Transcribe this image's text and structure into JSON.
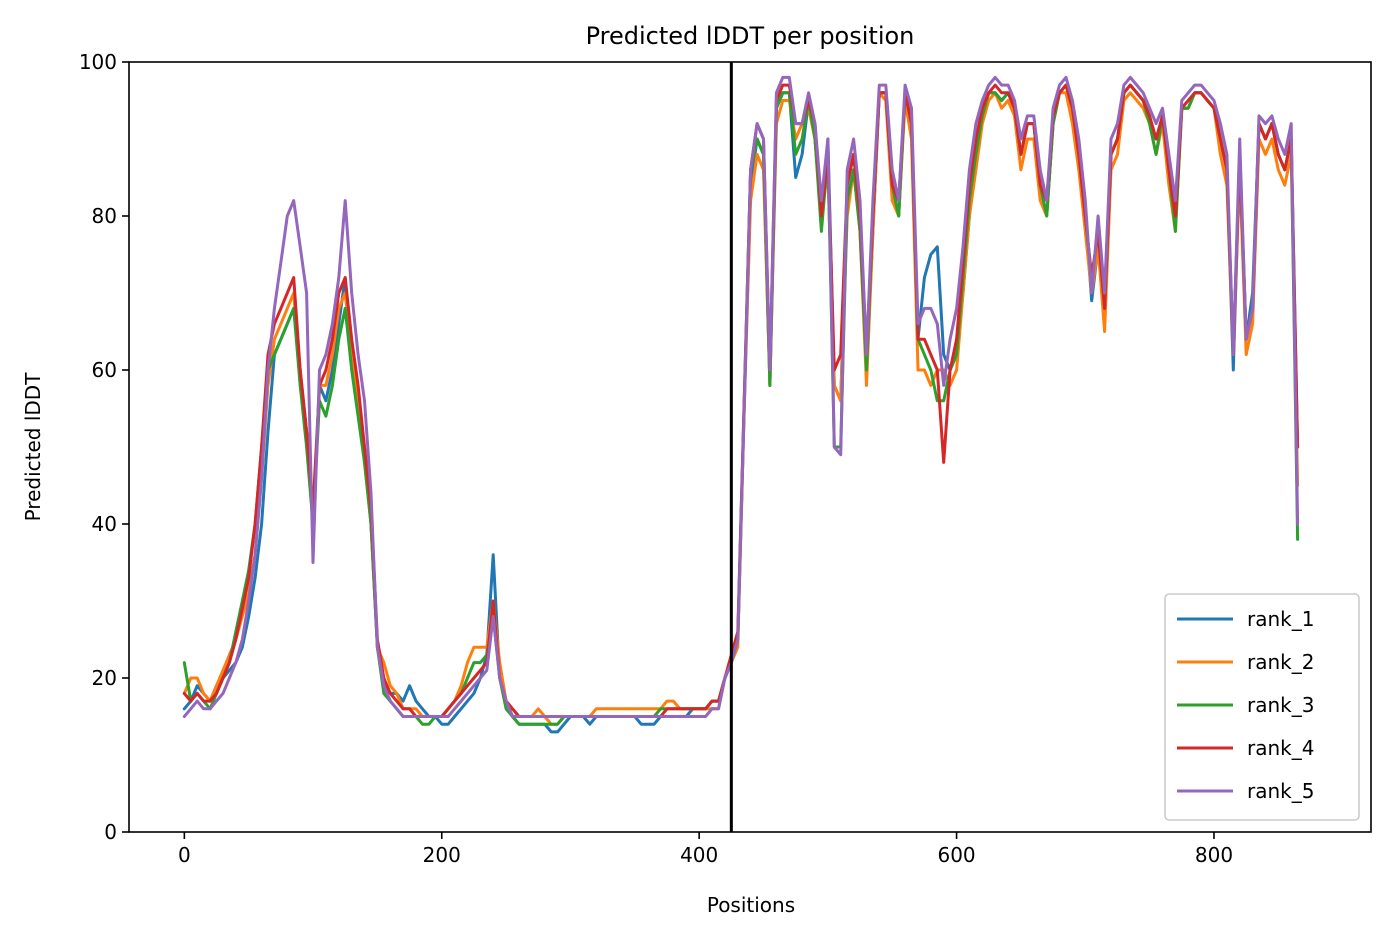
{
  "chart_data": {
    "type": "line",
    "title": "Predicted lDDT per position",
    "xlabel": "Positions",
    "ylabel": "Predicted lDDT",
    "xlim": [
      -43,
      922
    ],
    "ylim": [
      0,
      100
    ],
    "xticks": [
      0,
      200,
      400,
      600,
      800
    ],
    "yticks": [
      0,
      20,
      40,
      60,
      80,
      100
    ],
    "grid": false,
    "legend_position": "bottom-right",
    "vline": {
      "x": 425,
      "color": "#000000"
    },
    "x_step": 5,
    "x_start": 0,
    "series": [
      {
        "name": "rank_1",
        "color": "#1f77b4",
        "values": [
          16,
          17,
          19,
          18,
          17,
          19,
          20,
          21,
          22,
          24,
          28,
          33,
          40,
          52,
          62,
          64,
          66,
          68,
          60,
          52,
          40,
          58,
          56,
          60,
          66,
          72,
          62,
          56,
          50,
          40,
          24,
          19,
          18,
          18,
          17,
          19,
          17,
          16,
          15,
          15,
          14,
          14,
          15,
          16,
          17,
          18,
          20,
          23,
          36,
          20,
          17,
          15,
          14,
          14,
          14,
          14,
          14,
          13,
          13,
          14,
          15,
          15,
          15,
          14,
          15,
          15,
          15,
          15,
          15,
          15,
          15,
          14,
          14,
          14,
          15,
          15,
          15,
          15,
          15,
          16,
          16,
          16,
          17,
          17,
          20,
          22,
          25,
          55,
          84,
          90,
          88,
          58,
          94,
          96,
          96,
          85,
          88,
          95,
          90,
          80,
          90,
          58,
          56,
          84,
          88,
          80,
          60,
          78,
          96,
          96,
          84,
          80,
          96,
          92,
          64,
          72,
          75,
          76,
          62,
          60,
          62,
          70,
          80,
          88,
          93,
          96,
          96,
          95,
          96,
          94,
          88,
          92,
          92,
          84,
          80,
          92,
          96,
          97,
          94,
          88,
          80,
          69,
          76,
          70,
          88,
          90,
          96,
          97,
          96,
          95,
          92,
          90,
          93,
          86,
          80,
          94,
          94,
          96,
          96,
          95,
          94,
          90,
          86,
          60,
          88,
          64,
          70,
          92,
          90,
          92,
          88,
          86,
          90,
          50
        ],
        "extras": []
      },
      {
        "name": "rank_2",
        "color": "#ff7f0e",
        "values": [
          18,
          20,
          20,
          18,
          17,
          19,
          21,
          23,
          25,
          28,
          31,
          36,
          46,
          58,
          64,
          66,
          68,
          70,
          58,
          52,
          40,
          58,
          58,
          62,
          68,
          70,
          62,
          56,
          48,
          40,
          24,
          22,
          19,
          18,
          16,
          16,
          16,
          15,
          15,
          15,
          15,
          16,
          17,
          19,
          22,
          24,
          24,
          24,
          30,
          22,
          17,
          16,
          15,
          15,
          15,
          16,
          15,
          14,
          14,
          15,
          15,
          15,
          15,
          15,
          16,
          16,
          16,
          16,
          16,
          16,
          16,
          16,
          16,
          16,
          16,
          17,
          17,
          16,
          16,
          16,
          16,
          16,
          16,
          16,
          20,
          22,
          24,
          55,
          82,
          88,
          86,
          58,
          92,
          95,
          95,
          90,
          92,
          94,
          90,
          80,
          86,
          58,
          56,
          80,
          86,
          78,
          58,
          78,
          96,
          95,
          82,
          80,
          95,
          90,
          60,
          60,
          58,
          60,
          60,
          58,
          60,
          70,
          80,
          86,
          92,
          95,
          96,
          94,
          95,
          93,
          86,
          90,
          90,
          82,
          80,
          92,
          96,
          96,
          92,
          86,
          78,
          70,
          76,
          65,
          86,
          88,
          95,
          96,
          95,
          94,
          92,
          88,
          92,
          84,
          78,
          94,
          94,
          96,
          96,
          95,
          94,
          88,
          84,
          62,
          86,
          62,
          66,
          90,
          88,
          90,
          86,
          84,
          88,
          45
        ],
        "extras": []
      },
      {
        "name": "rank_3",
        "color": "#2ca02c",
        "values": [
          22,
          17,
          18,
          17,
          16,
          18,
          20,
          22,
          26,
          30,
          34,
          40,
          50,
          60,
          62,
          64,
          66,
          68,
          58,
          50,
          40,
          56,
          54,
          58,
          64,
          68,
          60,
          54,
          48,
          40,
          24,
          18,
          17,
          16,
          15,
          15,
          15,
          14,
          14,
          15,
          15,
          16,
          17,
          18,
          20,
          22,
          22,
          23,
          28,
          20,
          16,
          15,
          14,
          14,
          14,
          14,
          14,
          14,
          14,
          15,
          15,
          15,
          15,
          15,
          15,
          15,
          15,
          15,
          15,
          15,
          15,
          15,
          15,
          15,
          16,
          16,
          16,
          16,
          16,
          16,
          16,
          16,
          17,
          17,
          20,
          22,
          25,
          56,
          86,
          90,
          88,
          58,
          94,
          96,
          96,
          88,
          90,
          95,
          90,
          78,
          88,
          50,
          50,
          82,
          86,
          78,
          60,
          80,
          96,
          96,
          84,
          80,
          96,
          92,
          64,
          62,
          60,
          56,
          56,
          60,
          62,
          72,
          82,
          88,
          93,
          96,
          96,
          95,
          96,
          94,
          88,
          92,
          92,
          84,
          80,
          92,
          96,
          97,
          94,
          88,
          80,
          72,
          78,
          68,
          88,
          90,
          96,
          97,
          96,
          95,
          92,
          88,
          93,
          86,
          78,
          94,
          94,
          96,
          96,
          95,
          94,
          90,
          86,
          62,
          88,
          64,
          68,
          92,
          90,
          92,
          88,
          86,
          90,
          38
        ],
        "extras": []
      },
      {
        "name": "rank_4",
        "color": "#d62728",
        "values": [
          18,
          17,
          18,
          17,
          17,
          18,
          20,
          22,
          25,
          29,
          33,
          40,
          50,
          62,
          66,
          68,
          70,
          72,
          60,
          52,
          42,
          58,
          60,
          64,
          70,
          72,
          64,
          58,
          50,
          42,
          25,
          20,
          18,
          17,
          16,
          16,
          15,
          15,
          15,
          15,
          15,
          16,
          17,
          18,
          19,
          20,
          21,
          22,
          30,
          20,
          17,
          16,
          15,
          15,
          15,
          15,
          15,
          15,
          15,
          15,
          15,
          15,
          15,
          15,
          15,
          15,
          15,
          15,
          15,
          15,
          15,
          15,
          15,
          15,
          15,
          16,
          16,
          16,
          16,
          16,
          16,
          16,
          17,
          17,
          20,
          23,
          26,
          56,
          86,
          92,
          90,
          60,
          95,
          97,
          97,
          92,
          92,
          95,
          92,
          80,
          88,
          60,
          62,
          84,
          88,
          80,
          62,
          80,
          96,
          96,
          84,
          82,
          96,
          92,
          64,
          64,
          62,
          60,
          48,
          60,
          64,
          74,
          84,
          90,
          94,
          96,
          97,
          96,
          96,
          94,
          88,
          92,
          92,
          84,
          82,
          93,
          96,
          97,
          94,
          88,
          80,
          72,
          78,
          68,
          88,
          90,
          96,
          97,
          96,
          95,
          93,
          90,
          93,
          86,
          80,
          94,
          95,
          96,
          96,
          95,
          94,
          90,
          86,
          62,
          88,
          64,
          68,
          92,
          90,
          92,
          88,
          86,
          90,
          50
        ],
        "extras": []
      },
      {
        "name": "rank_5",
        "color": "#9467bd",
        "values": [
          15,
          16,
          17,
          16,
          16,
          17,
          18,
          20,
          22,
          25,
          30,
          36,
          46,
          60,
          68,
          74,
          80,
          82,
          76,
          70,
          35,
          60,
          62,
          66,
          72,
          82,
          70,
          62,
          56,
          44,
          24,
          19,
          17,
          16,
          15,
          15,
          15,
          15,
          15,
          15,
          15,
          15,
          16,
          17,
          18,
          19,
          20,
          21,
          28,
          20,
          17,
          15,
          15,
          15,
          15,
          15,
          15,
          15,
          15,
          15,
          15,
          15,
          15,
          15,
          15,
          15,
          15,
          15,
          15,
          15,
          15,
          15,
          15,
          15,
          15,
          15,
          15,
          15,
          15,
          15,
          15,
          15,
          16,
          16,
          20,
          22,
          25,
          55,
          86,
          92,
          90,
          60,
          96,
          98,
          98,
          92,
          92,
          96,
          92,
          82,
          90,
          50,
          49,
          86,
          90,
          82,
          62,
          82,
          97,
          97,
          86,
          82,
          97,
          94,
          66,
          68,
          68,
          66,
          58,
          64,
          68,
          76,
          86,
          92,
          95,
          97,
          98,
          97,
          97,
          95,
          90,
          93,
          93,
          86,
          82,
          94,
          97,
          98,
          95,
          90,
          82,
          70,
          80,
          70,
          90,
          92,
          97,
          98,
          97,
          96,
          94,
          92,
          94,
          88,
          82,
          95,
          96,
          97,
          97,
          96,
          95,
          92,
          88,
          62,
          90,
          64,
          68,
          93,
          92,
          93,
          90,
          88,
          92,
          40
        ],
        "extras": []
      }
    ]
  }
}
